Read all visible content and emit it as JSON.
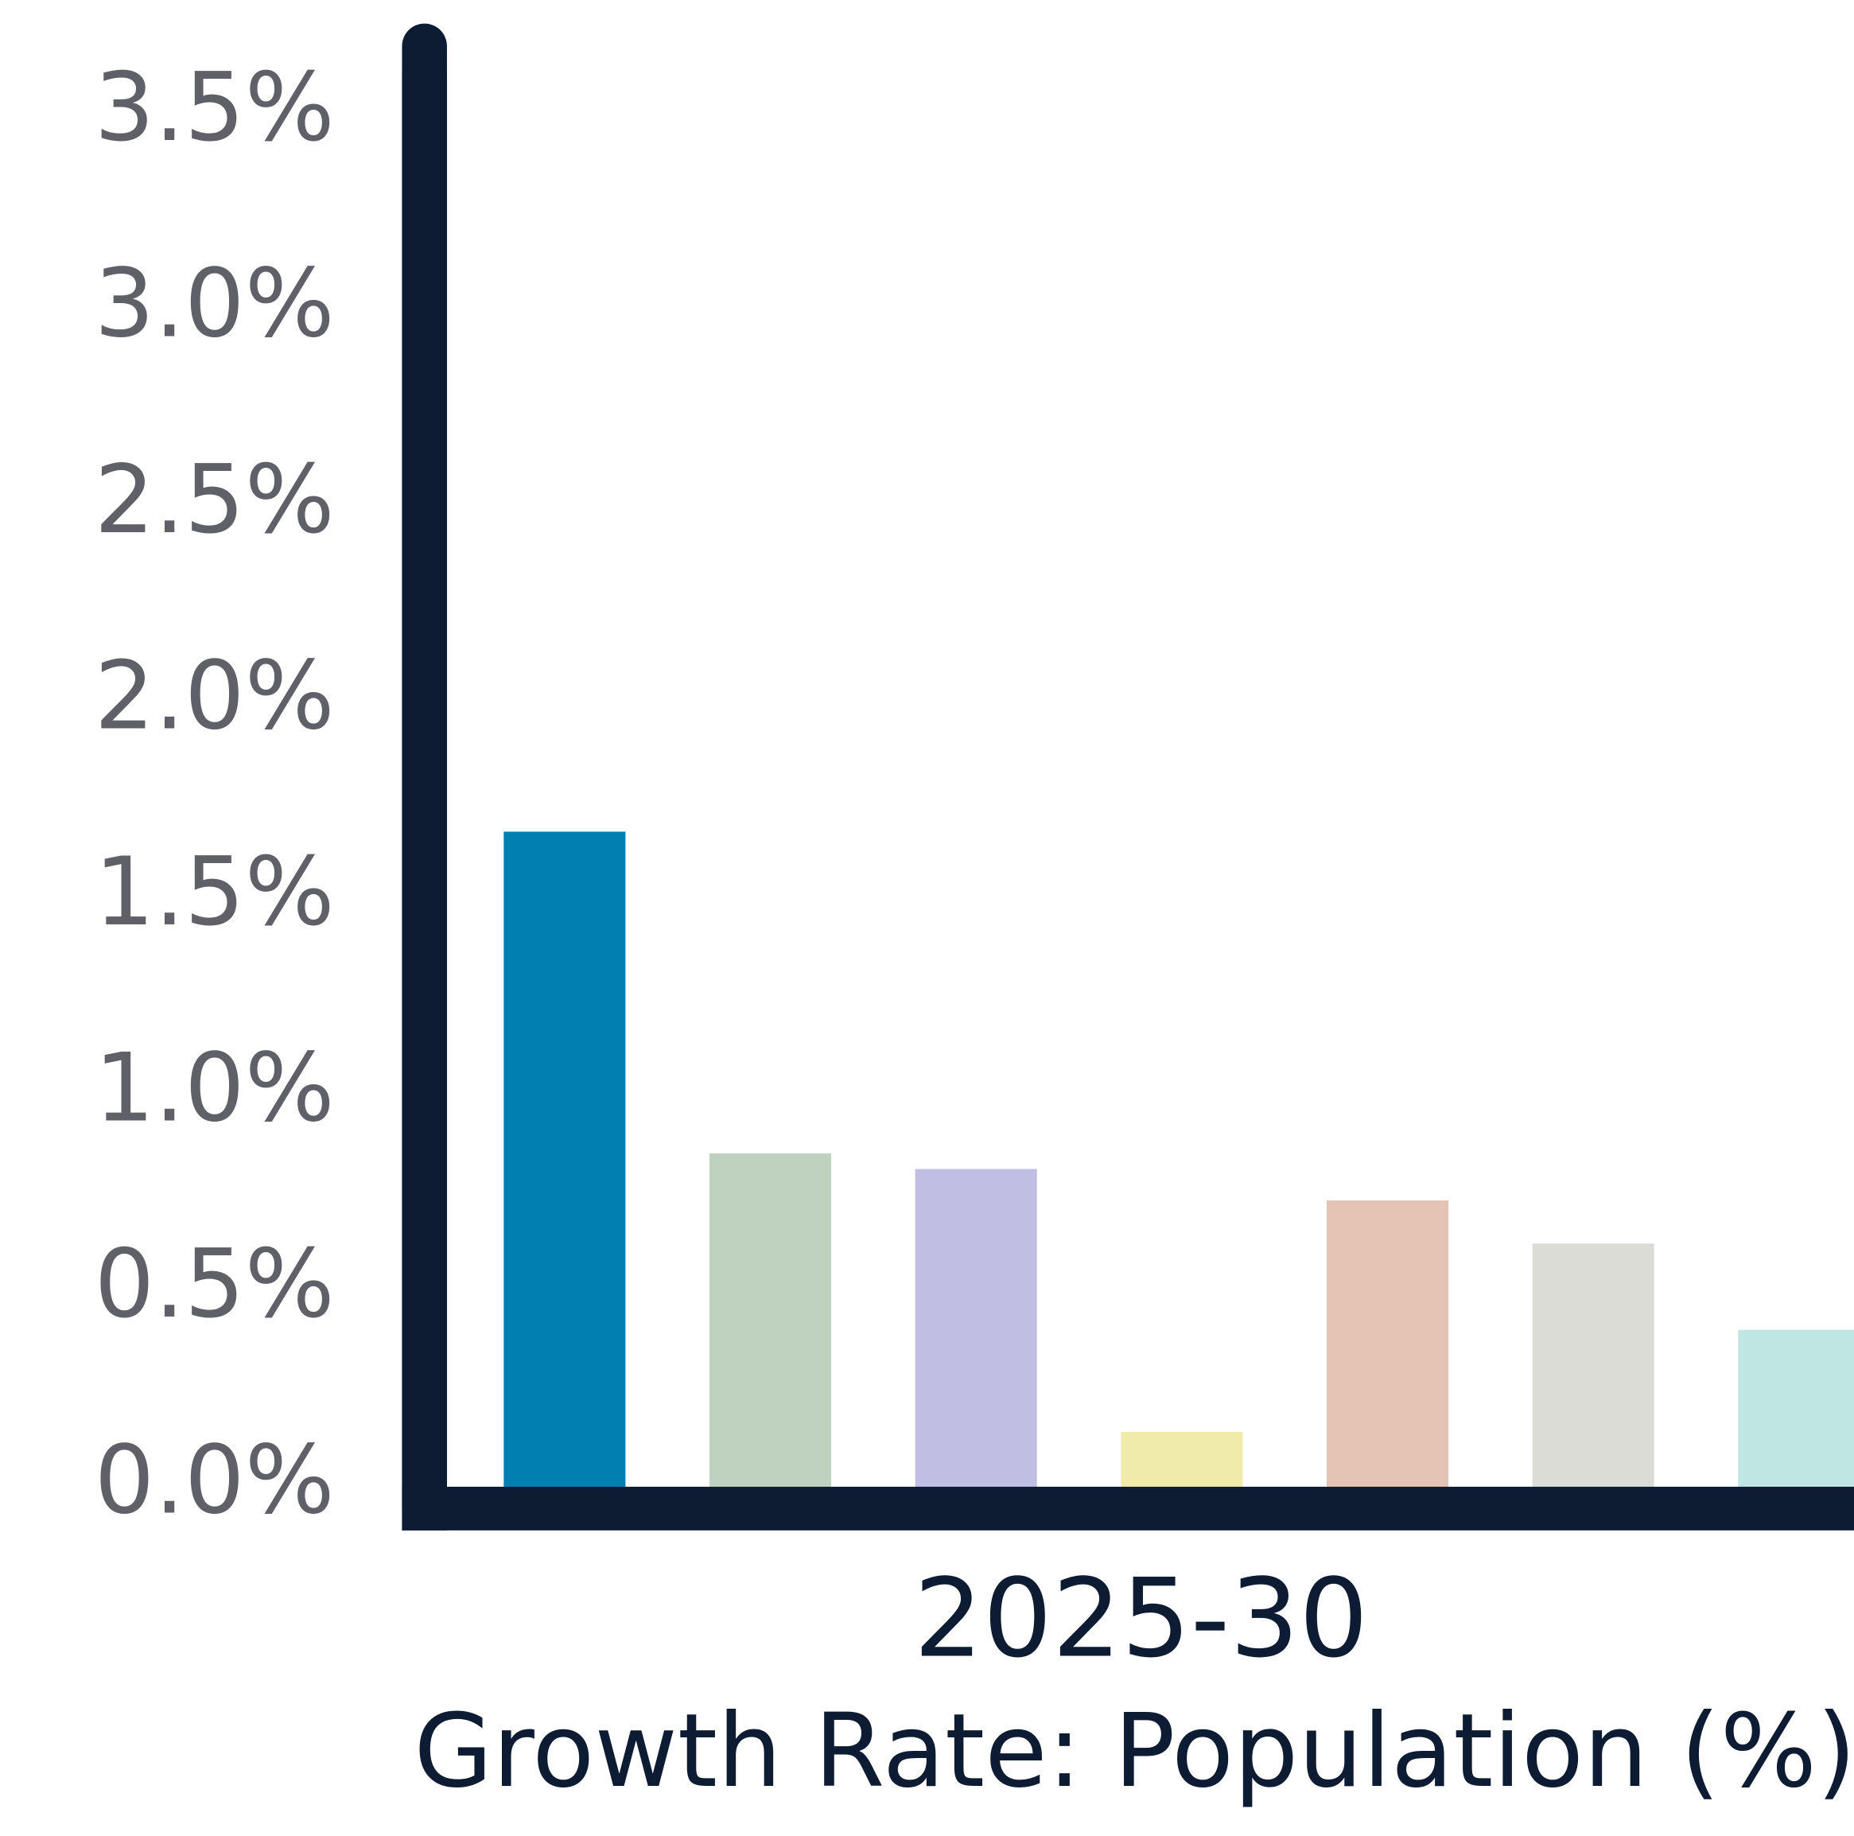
{
  "chart_data": {
    "type": "bar",
    "categories": [
      "2025-30"
    ],
    "x_label": "Growth Rate: Population (%)",
    "series": [
      {
        "color": "#0080b0",
        "values": [
          1.67
        ]
      },
      {
        "color": "#bfd2bf",
        "values": [
          0.85
        ]
      },
      {
        "color": "#c0bfe3",
        "values": [
          0.81
        ]
      },
      {
        "color": "#f0ebab",
        "values": [
          0.14
        ]
      },
      {
        "color": "#e6c4b5",
        "values": [
          0.73
        ]
      },
      {
        "color": "#dcdcd6",
        "values": [
          0.62
        ]
      },
      {
        "color": "#c0e6e3",
        "values": [
          0.4
        ]
      }
    ],
    "ylim": [
      0,
      3.7
    ],
    "yticks": [
      {
        "value": 0,
        "label": "0.0%"
      },
      {
        "value": 0.5,
        "label": "0.5%"
      },
      {
        "value": 1,
        "label": "1.0%"
      },
      {
        "value": 1.5,
        "label": "1.5%"
      },
      {
        "value": 2,
        "label": "2.0%"
      },
      {
        "value": 2.5,
        "label": "2.5%"
      },
      {
        "value": 3,
        "label": "3.0%"
      },
      {
        "value": 3.5,
        "label": "3.5%"
      }
    ],
    "grid": false
  }
}
